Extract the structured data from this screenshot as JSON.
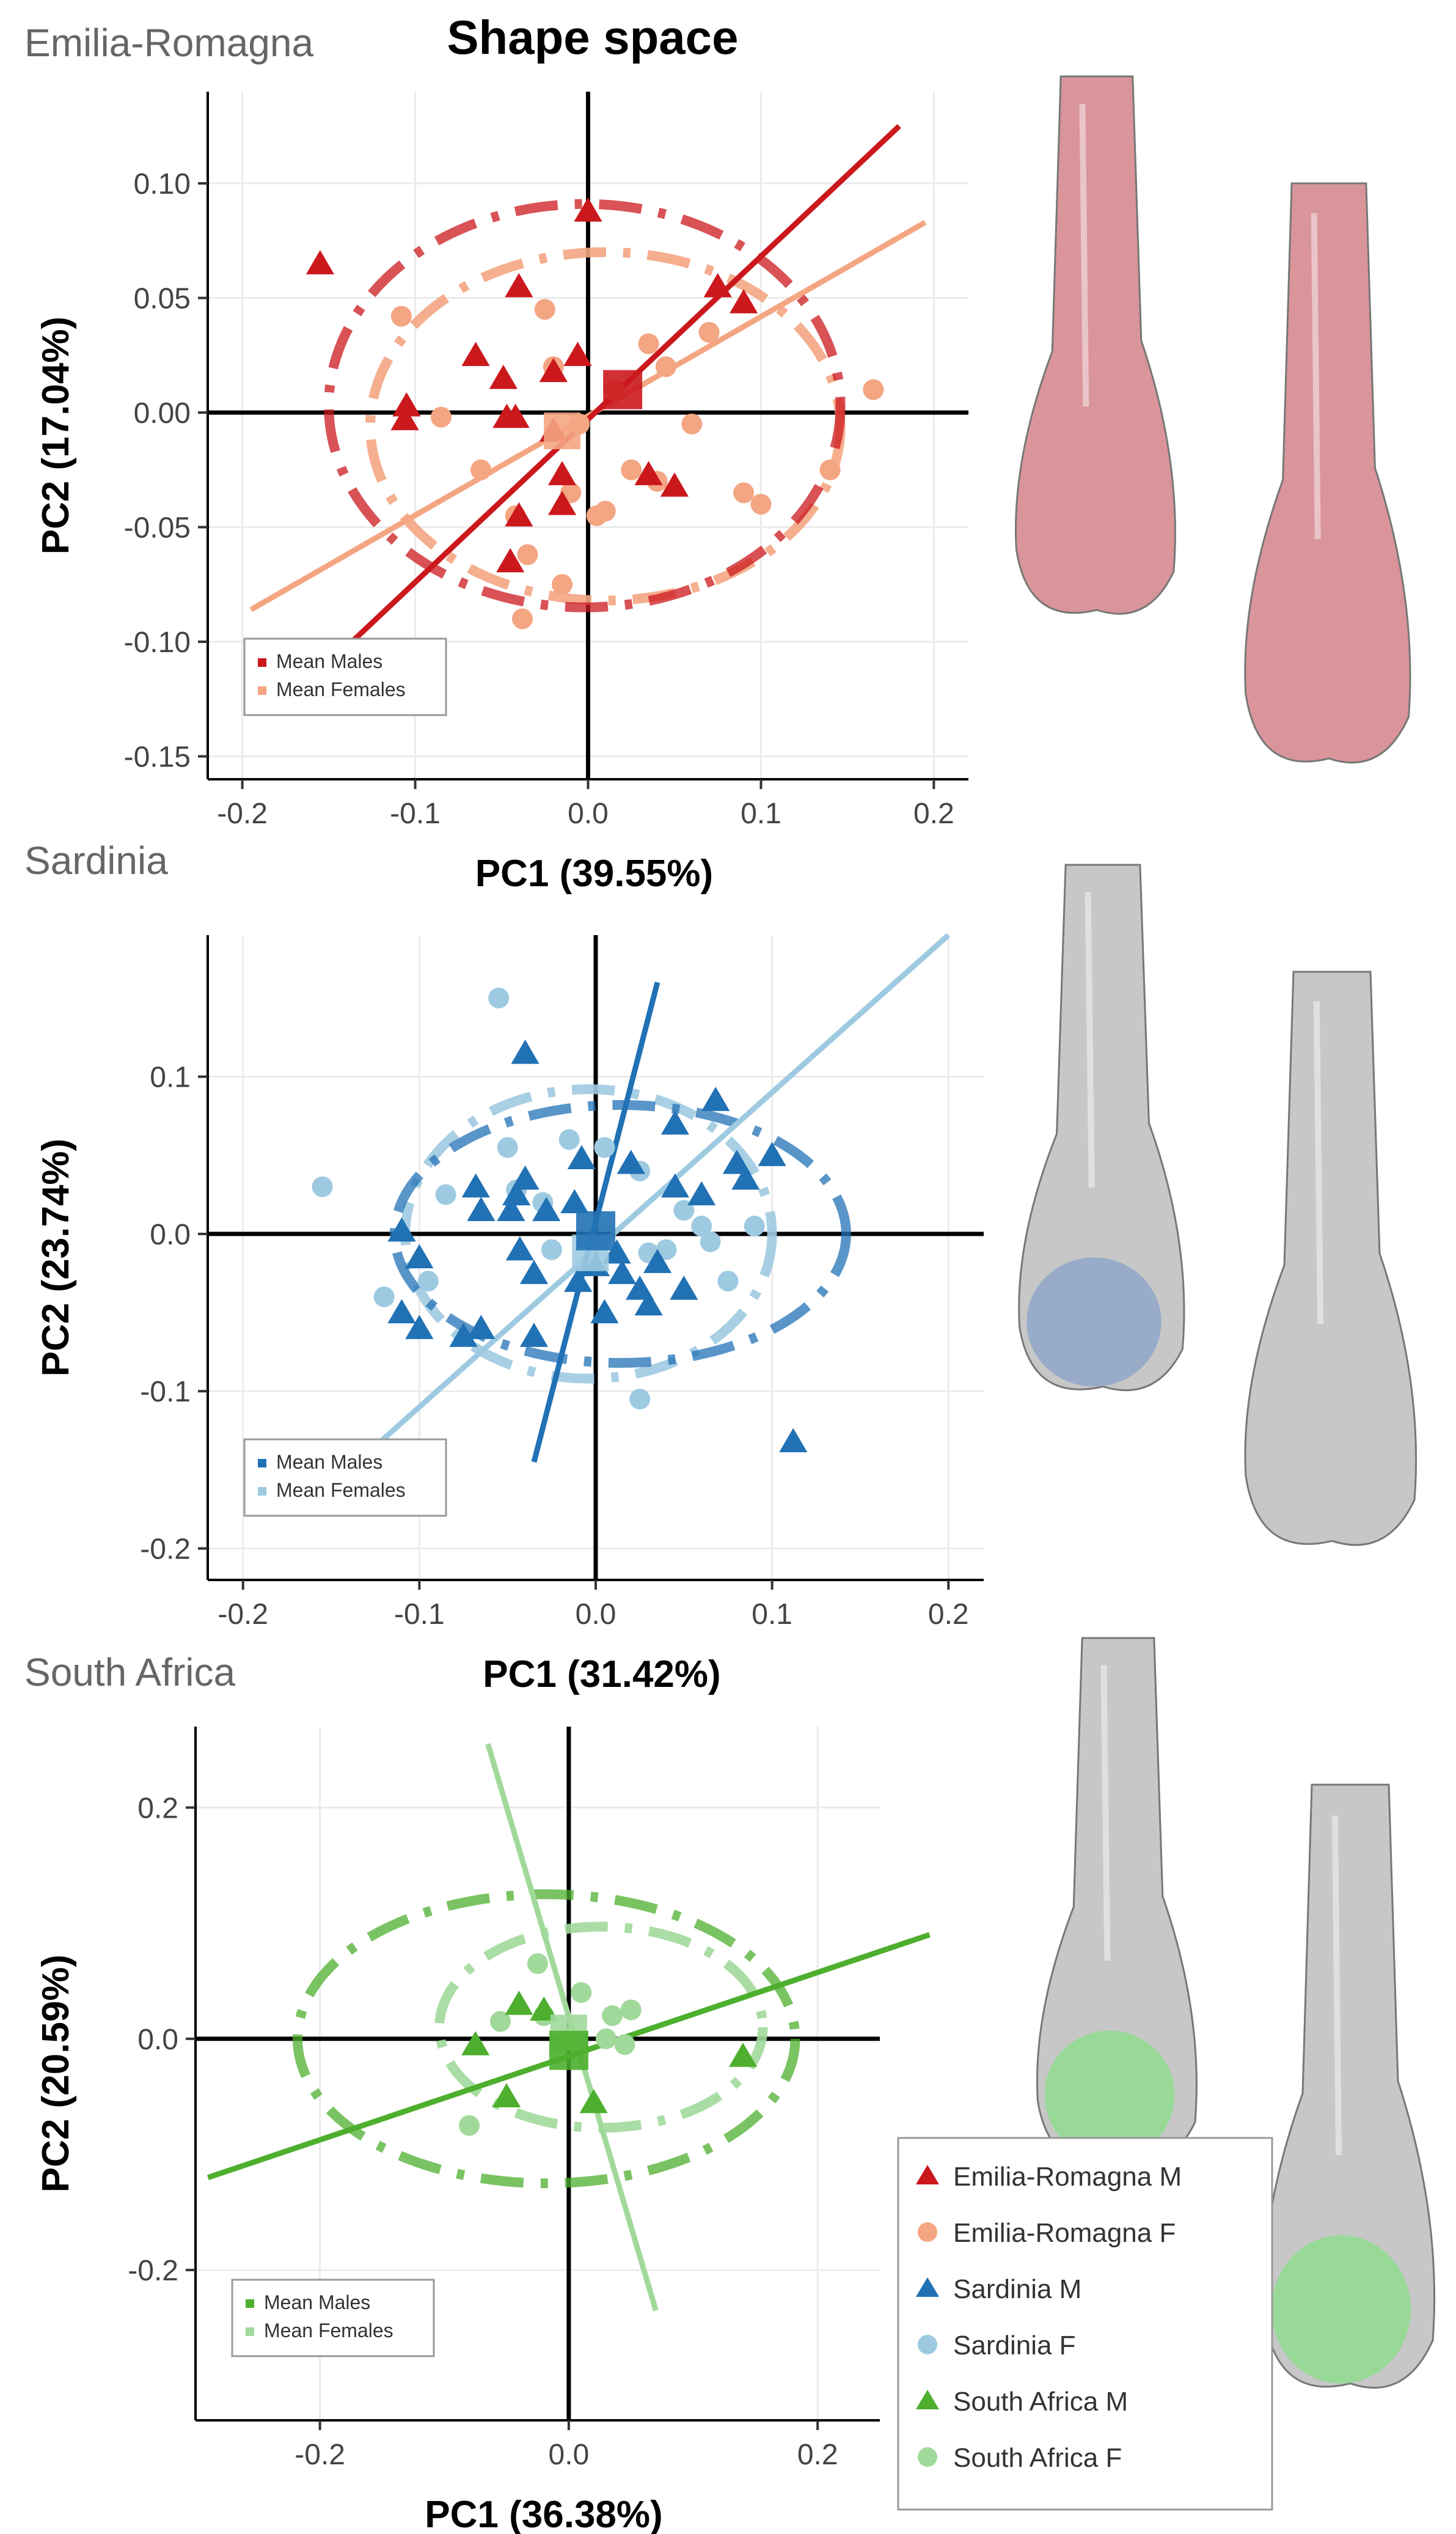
{
  "title": "Shape space",
  "colors": {
    "er_m": "#cb181d",
    "er_f": "#f4a582",
    "sa_m": "#2171b5",
    "sa_f": "#9ecae1",
    "za_m": "#4daf2d",
    "za_f": "#a1d99b",
    "bone_red": "#d9959a",
    "bone_blue": "#8fa6c9",
    "bone_green": "#8fdc8f",
    "bone_grey": "#c7c7c7"
  },
  "legend": {
    "entries": [
      {
        "label": "Emilia-Romagna M",
        "shape": "triangle",
        "color": "#cb181d"
      },
      {
        "label": "Emilia-Romagna F",
        "shape": "circle",
        "color": "#f4a582"
      },
      {
        "label": "Sardinia M",
        "shape": "triangle",
        "color": "#2171b5"
      },
      {
        "label": "Sardinia F",
        "shape": "circle",
        "color": "#9ecae1"
      },
      {
        "label": "South Africa M",
        "shape": "triangle",
        "color": "#4daf2d"
      },
      {
        "label": "South Africa F",
        "shape": "circle",
        "color": "#a1d99b"
      }
    ]
  },
  "chart_data": [
    {
      "type": "scatter",
      "panel_label": "Emilia-Romagna",
      "xlabel": "PC1 (39.55%)",
      "ylabel": "PC2 (17.04%)",
      "xlim": [
        -0.22,
        0.22
      ],
      "ylim": [
        -0.16,
        0.14
      ],
      "xticks": [
        -0.2,
        -0.1,
        0.0,
        0.1,
        0.2
      ],
      "xtick_labels": [
        "-0.2",
        "-0.1",
        "0.0",
        "0.1",
        "0.2"
      ],
      "yticks": [
        -0.15,
        -0.1,
        -0.05,
        0.0,
        0.05,
        0.1
      ],
      "ytick_labels": [
        "-0.15",
        "-0.10",
        "-0.05",
        "0.00",
        "0.05",
        "0.10"
      ],
      "male_color": "#cb181d",
      "female_color": "#f4a582",
      "legend": [
        "Mean Males",
        "Mean Females"
      ],
      "males": [
        [
          -0.155,
          0.065
        ],
        [
          -0.105,
          0.003
        ],
        [
          -0.106,
          -0.003
        ],
        [
          -0.065,
          0.025
        ],
        [
          -0.049,
          0.015
        ],
        [
          -0.04,
          0.055
        ],
        [
          -0.047,
          -0.002
        ],
        [
          -0.042,
          -0.002
        ],
        [
          -0.02,
          0.018
        ],
        [
          -0.02,
          -0.008
        ],
        [
          -0.04,
          -0.045
        ],
        [
          -0.045,
          -0.065
        ],
        [
          -0.015,
          -0.04
        ],
        [
          -0.006,
          0.025
        ],
        [
          0.0,
          0.088
        ],
        [
          -0.015,
          -0.027
        ],
        [
          0.035,
          -0.027
        ],
        [
          0.05,
          -0.032
        ],
        [
          0.075,
          0.055
        ],
        [
          0.09,
          0.048
        ]
      ],
      "females": [
        [
          -0.108,
          0.042
        ],
        [
          -0.085,
          -0.002
        ],
        [
          -0.062,
          -0.025
        ],
        [
          -0.042,
          -0.045
        ],
        [
          -0.025,
          0.045
        ],
        [
          -0.02,
          0.02
        ],
        [
          -0.005,
          -0.005
        ],
        [
          -0.035,
          -0.062
        ],
        [
          -0.015,
          -0.075
        ],
        [
          -0.038,
          -0.09
        ],
        [
          -0.01,
          -0.035
        ],
        [
          0.005,
          -0.045
        ],
        [
          0.01,
          -0.043
        ],
        [
          0.015,
          0.01
        ],
        [
          0.025,
          -0.025
        ],
        [
          0.035,
          0.03
        ],
        [
          0.04,
          -0.03
        ],
        [
          0.045,
          0.02
        ],
        [
          0.06,
          -0.005
        ],
        [
          0.07,
          0.035
        ],
        [
          0.09,
          -0.035
        ],
        [
          0.1,
          -0.04
        ],
        [
          0.14,
          -0.025
        ],
        [
          0.165,
          0.01
        ]
      ],
      "mean_male": [
        0.02,
        0.01
      ],
      "mean_female": [
        -0.015,
        -0.008
      ],
      "line_male": [
        [
          -0.145,
          -0.106
        ],
        [
          0.18,
          0.125
        ]
      ],
      "line_female": [
        [
          -0.195,
          -0.086
        ],
        [
          0.195,
          0.083
        ]
      ],
      "ellipse_male": {
        "cx": -0.002,
        "cy": 0.003,
        "rx": 0.148,
        "ry": 0.088
      },
      "ellipse_female": {
        "cx": 0.01,
        "cy": -0.006,
        "rx": 0.136,
        "ry": 0.076
      }
    },
    {
      "type": "scatter",
      "panel_label": "Sardinia",
      "xlabel": "PC1 (31.42%)",
      "ylabel": "PC2 (23.74%)",
      "xlim": [
        -0.22,
        0.22
      ],
      "ylim": [
        -0.22,
        0.19
      ],
      "xticks": [
        -0.2,
        -0.1,
        0.0,
        0.1,
        0.2
      ],
      "xtick_labels": [
        "-0.2",
        "-0.1",
        "0.0",
        "0.1",
        "0.2"
      ],
      "yticks": [
        -0.2,
        -0.1,
        0.0,
        0.1
      ],
      "ytick_labels": [
        "-0.2",
        "-0.1",
        "0.0",
        "0.1"
      ],
      "male_color": "#2171b5",
      "female_color": "#9ecae1",
      "legend": [
        "Mean Males",
        "Mean Females"
      ],
      "males": [
        [
          -0.11,
          0.002
        ],
        [
          -0.1,
          -0.015
        ],
        [
          -0.11,
          -0.05
        ],
        [
          -0.1,
          -0.06
        ],
        [
          -0.075,
          -0.065
        ],
        [
          -0.065,
          -0.06
        ],
        [
          -0.068,
          0.03
        ],
        [
          -0.065,
          0.015
        ],
        [
          -0.048,
          0.015
        ],
        [
          -0.045,
          0.025
        ],
        [
          -0.04,
          0.035
        ],
        [
          -0.043,
          -0.01
        ],
        [
          -0.035,
          -0.025
        ],
        [
          -0.035,
          -0.065
        ],
        [
          -0.04,
          0.115
        ],
        [
          -0.028,
          0.015
        ],
        [
          -0.012,
          0.02
        ],
        [
          -0.008,
          0.048
        ],
        [
          -0.01,
          -0.03
        ],
        [
          0.0,
          -0.02
        ],
        [
          0.005,
          -0.05
        ],
        [
          0.012,
          -0.012
        ],
        [
          0.015,
          -0.025
        ],
        [
          0.02,
          0.045
        ],
        [
          0.025,
          -0.035
        ],
        [
          0.03,
          -0.045
        ],
        [
          0.035,
          -0.018
        ],
        [
          0.045,
          0.03
        ],
        [
          0.05,
          -0.035
        ],
        [
          0.06,
          0.025
        ],
        [
          0.068,
          0.085
        ],
        [
          0.08,
          0.045
        ],
        [
          0.085,
          0.035
        ],
        [
          0.1,
          0.05
        ],
        [
          0.112,
          -0.132
        ],
        [
          0.045,
          0.07
        ]
      ],
      "females": [
        [
          -0.155,
          0.03
        ],
        [
          -0.12,
          -0.04
        ],
        [
          -0.095,
          -0.03
        ],
        [
          -0.085,
          0.025
        ],
        [
          -0.055,
          0.15
        ],
        [
          -0.05,
          0.055
        ],
        [
          -0.045,
          0.028
        ],
        [
          -0.03,
          0.02
        ],
        [
          -0.025,
          -0.01
        ],
        [
          -0.015,
          0.06
        ],
        [
          0.005,
          0.055
        ],
        [
          0.025,
          0.04
        ],
        [
          0.03,
          -0.012
        ],
        [
          0.025,
          -0.105
        ],
        [
          0.04,
          -0.01
        ],
        [
          0.05,
          0.015
        ],
        [
          0.06,
          0.005
        ],
        [
          0.065,
          -0.005
        ],
        [
          0.075,
          -0.03
        ],
        [
          0.09,
          0.005
        ]
      ],
      "mean_male": [
        0.0,
        0.002
      ],
      "mean_female": [
        -0.003,
        -0.012
      ],
      "line_male": [
        [
          -0.035,
          -0.145
        ],
        [
          0.035,
          0.16
        ]
      ],
      "line_female": [
        [
          -0.13,
          -0.14
        ],
        [
          0.2,
          0.19
        ]
      ],
      "ellipse_male": {
        "cx": 0.014,
        "cy": 0.0,
        "rx": 0.128,
        "ry": 0.082
      },
      "ellipse_female": {
        "cx": -0.004,
        "cy": 0.0,
        "rx": 0.104,
        "ry": 0.092
      }
    },
    {
      "type": "scatter",
      "panel_label": "South Africa",
      "xlabel": "PC1 (36.38%)",
      "ylabel": "PC2 (20.59%)",
      "xlim": [
        -0.3,
        0.25
      ],
      "ylim": [
        -0.33,
        0.27
      ],
      "xticks": [
        -0.2,
        0.0,
        0.2
      ],
      "xtick_labels": [
        "-0.2",
        "0.0",
        "0.2"
      ],
      "yticks": [
        -0.2,
        0.0,
        0.2
      ],
      "ytick_labels": [
        "-0.2",
        "0.0",
        "0.2"
      ],
      "male_color": "#4daf2d",
      "female_color": "#a1d99b",
      "legend": [
        "Mean Males",
        "Mean Females"
      ],
      "males": [
        [
          -0.075,
          -0.005
        ],
        [
          -0.05,
          -0.05
        ],
        [
          -0.04,
          0.03
        ],
        [
          -0.02,
          0.025
        ],
        [
          0.02,
          -0.055
        ],
        [
          0.14,
          -0.015
        ]
      ],
      "females": [
        [
          -0.08,
          -0.075
        ],
        [
          -0.055,
          0.015
        ],
        [
          -0.025,
          0.065
        ],
        [
          -0.02,
          0.02
        ],
        [
          0.0,
          0.0
        ],
        [
          0.01,
          0.04
        ],
        [
          0.03,
          0.0
        ],
        [
          0.035,
          0.02
        ],
        [
          0.045,
          -0.005
        ],
        [
          0.05,
          0.025
        ]
      ],
      "mean_male": [
        0.0,
        -0.01
      ],
      "mean_female": [
        0.0,
        0.005
      ],
      "line_male": [
        [
          -0.29,
          -0.12
        ],
        [
          0.29,
          0.09
        ]
      ],
      "line_female": [
        [
          -0.065,
          0.255
        ],
        [
          0.07,
          -0.235
        ]
      ],
      "ellipse_male": {
        "cx": -0.018,
        "cy": 0.0,
        "rx": 0.2,
        "ry": 0.125
      },
      "ellipse_female": {
        "cx": 0.026,
        "cy": 0.01,
        "rx": 0.13,
        "ry": 0.087
      }
    }
  ]
}
